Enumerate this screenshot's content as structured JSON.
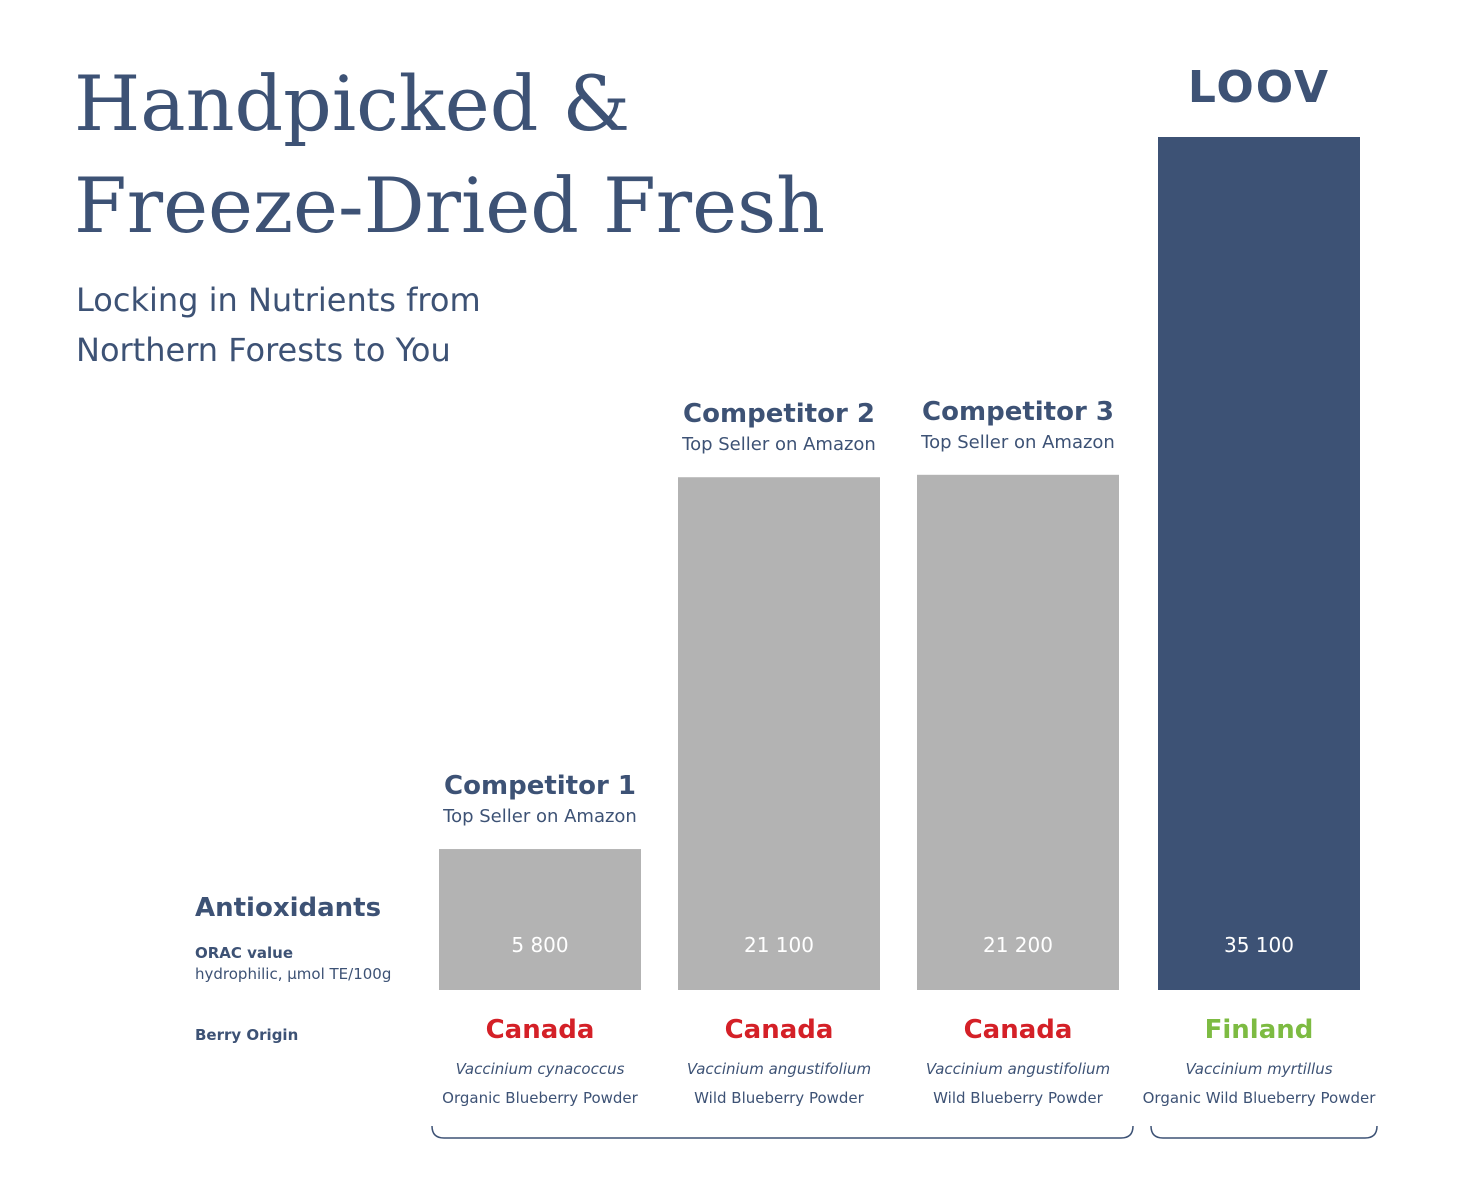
{
  "chart_data": {
    "type": "bar",
    "title": [
      "Handpicked &",
      "Freeze-Dried Fresh"
    ],
    "subtitle": [
      "Locking in Nutrients from",
      "Northern Forests to You"
    ],
    "row_labels": {
      "metric": "Antioxidants",
      "measure": "ORAC value",
      "unit": "hydrophilic, µmol TE/100g",
      "origin": "Berry Origin"
    },
    "categories": [
      "Competitor 1",
      "Competitor 2",
      "Competitor 3",
      "LOOV"
    ],
    "category_notes": [
      "Top Seller on Amazon",
      "Top Seller on Amazon",
      "Top Seller on Amazon",
      null
    ],
    "values": [
      5800,
      21100,
      21200,
      35100
    ],
    "value_labels": [
      "5 800",
      "21 100",
      "21 200",
      "35 100"
    ],
    "colors": [
      "#b3b3b3",
      "#b3b3b3",
      "#b3b3b3",
      "#3d5275"
    ],
    "origins": [
      "Canada",
      "Canada",
      "Canada",
      "Finland"
    ],
    "origin_colors": [
      "#d42027",
      "#d42027",
      "#d42027",
      "#7dbb42"
    ],
    "species": [
      "Vaccinium cynacoccus",
      "Vaccinium angustifolium",
      "Vaccinium angustifolium",
      "Vaccinium myrtillus"
    ],
    "products": [
      "Organic Blueberry Powder",
      "Wild Blueberry Powder",
      "Wild Blueberry Powder",
      "Organic Wild Blueberry Powder"
    ]
  }
}
